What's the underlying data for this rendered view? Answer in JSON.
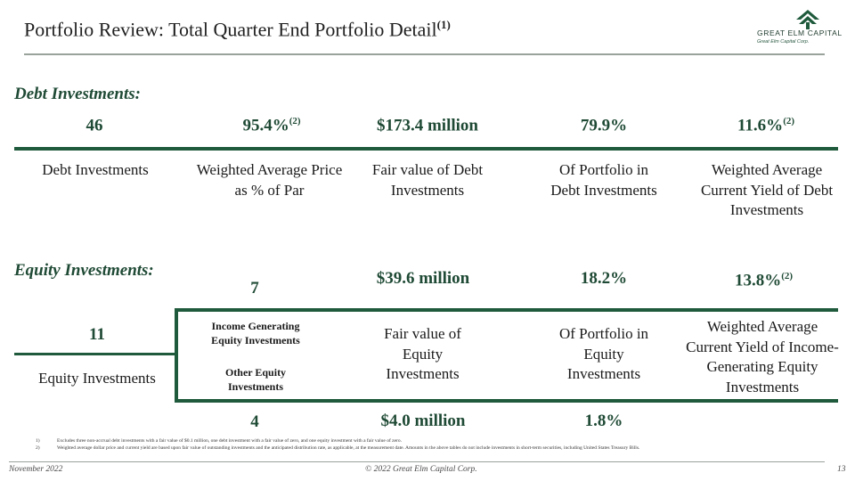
{
  "header": {
    "title": "Portfolio Review: Total Quarter End Portfolio Detail",
    "title_sup": "(1)"
  },
  "logo": {
    "name": "GREAT ELM CAPITAL",
    "subtitle": "Great Elm Capital Corp.",
    "icon": "stacked-chevron-tree-icon",
    "color": "#1f5a3c"
  },
  "debt": {
    "heading": "Debt Investments:",
    "metrics": [
      {
        "value": "46",
        "sup": "",
        "label": "Debt Investments"
      },
      {
        "value": "95.4%",
        "sup": "(2)",
        "label": "Weighted Average Price as % of Par"
      },
      {
        "value": "$173.4 million",
        "sup": "",
        "label": "Fair value of Debt Investments"
      },
      {
        "value": "79.9%",
        "sup": "",
        "label": "Of Portfolio in Debt Investments"
      },
      {
        "value": "11.6%",
        "sup": "(2)",
        "label": "Weighted Average Current Yield of Debt Investments"
      }
    ]
  },
  "equity": {
    "heading": "Equity Investments:",
    "total_value": "11",
    "total_label": "Equity Investments",
    "income_count": "7",
    "income_label": "Income Generating Equity Investments",
    "other_count": "4",
    "other_label": "Other Equity Investments",
    "fv_income": "$39.6 million",
    "fv_other": "$4.0 million",
    "fv_label": "Fair value of Equity Investments",
    "pct_income": "18.2%",
    "pct_other": "1.8%",
    "pct_label": "Of Portfolio in Equity Investments",
    "yield_value": "13.8%",
    "yield_sup": "(2)",
    "yield_label": "Weighted Average Current Yield of Income-Generating Equity Investments"
  },
  "footnotes": [
    {
      "num": "1)",
      "text": "Excludes three non-accrual debt investments with a fair value of $0.1 million, one debt investment with a fair value of zero, and one equity investment with a fair value of zero."
    },
    {
      "num": "2)",
      "text": "Weighted average dollar price and current yield are based upon fair value of outstanding investments and the anticipated distribution rate, as applicable, at the measurement date. Amounts in the above tables do not include investments in short-term securities, including United States Treasury Bills."
    }
  ],
  "footer": {
    "date": "November 2022",
    "copyright": "© 2022 Great Elm Capital Corp.",
    "page": "13"
  },
  "colors": {
    "accent": "#1f5a3c",
    "heading": "#1f4a35",
    "rule": "#9aa29c"
  }
}
